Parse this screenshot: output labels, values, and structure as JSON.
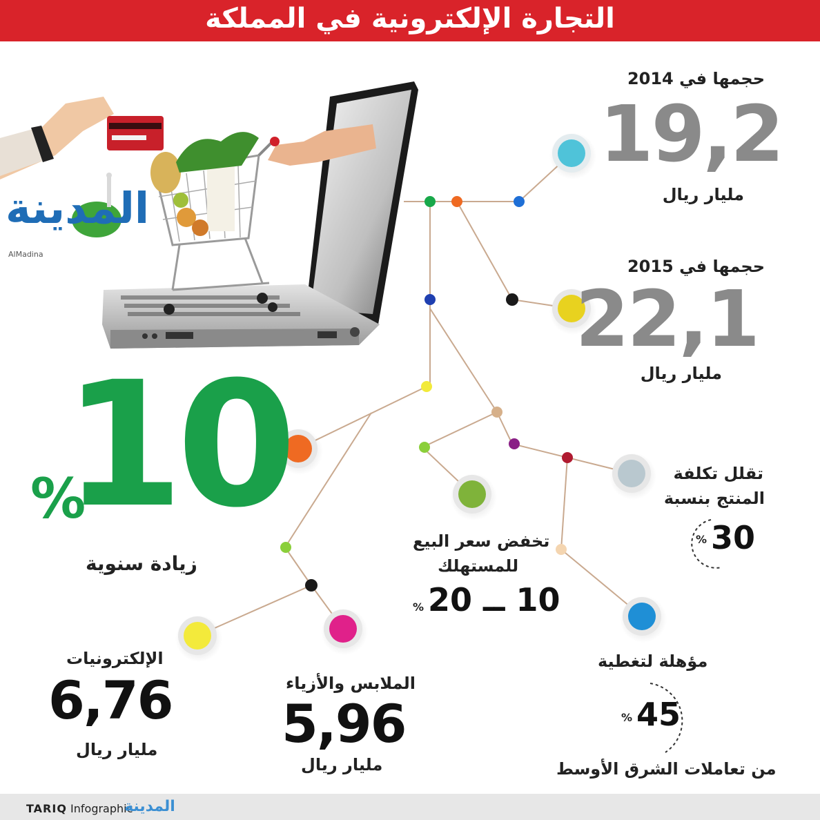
{
  "title": "التجارة الإلكترونية في المملكة",
  "logo": {
    "text": "المدينة",
    "sub": "AlMadina"
  },
  "stats": {
    "y2014": {
      "label": "حجمها في 2014",
      "value": "19,2",
      "unit": "مليار ريال"
    },
    "y2015": {
      "label": "حجمها في 2015",
      "value": "22,1",
      "unit": "مليار ريال"
    },
    "growth": {
      "value": "10",
      "percent": "%",
      "label": "زيادة سنوية"
    },
    "cost": {
      "line1": "تقلل تكلفة",
      "line2": "المنتج بنسبة",
      "value": "30",
      "percent": "%"
    },
    "price": {
      "line1": "تخفض سعر البيع",
      "line2": "للمستهلك",
      "value": "10 ــ 20",
      "percent": "%"
    },
    "mideast": {
      "line1": "مؤهلة لتغطية",
      "value": "45",
      "percent": "%",
      "line2": "من تعاملات الشرق الأوسط"
    },
    "electronics": {
      "label": "الإلكترونيات",
      "value": "6,76",
      "unit": "مليار ريال"
    },
    "fashion": {
      "label": "الملابس والأزياء",
      "value": "5,96",
      "unit": "مليار ريال"
    }
  },
  "footer": {
    "brand": "TARIQ",
    "word": "Infographic",
    "logo": "المدينة"
  },
  "colors": {
    "banner": "#d9232a",
    "green": "#1aa04a",
    "gray_number": "#8a8a8a",
    "node_cyan": "#4fc3d9",
    "node_yellow": "#e8d21f",
    "node_orange": "#ef6a22",
    "node_olive": "#7fb33a",
    "node_silver": "#b9c8cf",
    "node_blue": "#1f8fd6",
    "node_pale_yellow": "#f3ea3b",
    "node_magenta": "#e0218a",
    "line": "#c9a98f"
  },
  "icons": [
    "laptop-icon",
    "shopping-cart-icon",
    "credit-card-icon",
    "mosque-icon"
  ]
}
